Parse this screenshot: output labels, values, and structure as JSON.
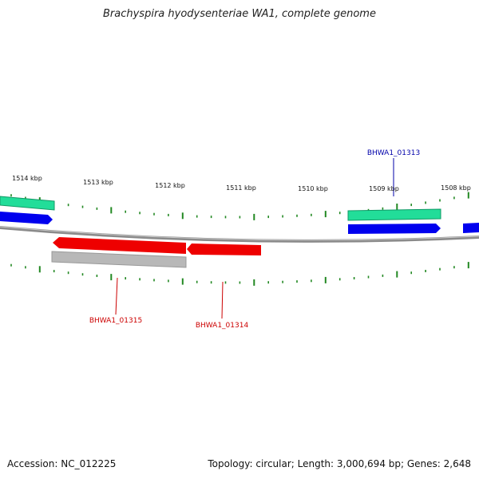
{
  "title": "Brachyspira hyodysenteriae WA1, complete genome",
  "footer": {
    "accession": "Accession: NC_012225",
    "topology": "Topology: circular; Length: 3,000,694 bp; Genes: 2,648"
  },
  "kbp_labels": [
    "1514 kbp",
    "1513 kbp",
    "1512 kbp",
    "1511 kbp",
    "1510 kbp",
    "1509 kbp",
    "1508 kbp"
  ],
  "gene_labels": [
    "BHWA1_01313",
    "BHWA1_01315",
    "BHWA1_01314"
  ],
  "colors": {
    "tick": "#228822",
    "backbone": "#8a8a8a",
    "forward_rna": "#22dd99",
    "forward_cds": "#0000ee",
    "reverse_cds": "#ee0000",
    "reverse_gray": "#b8b8b8",
    "label_blue": "#0000aa",
    "label_red": "#cc0000"
  }
}
